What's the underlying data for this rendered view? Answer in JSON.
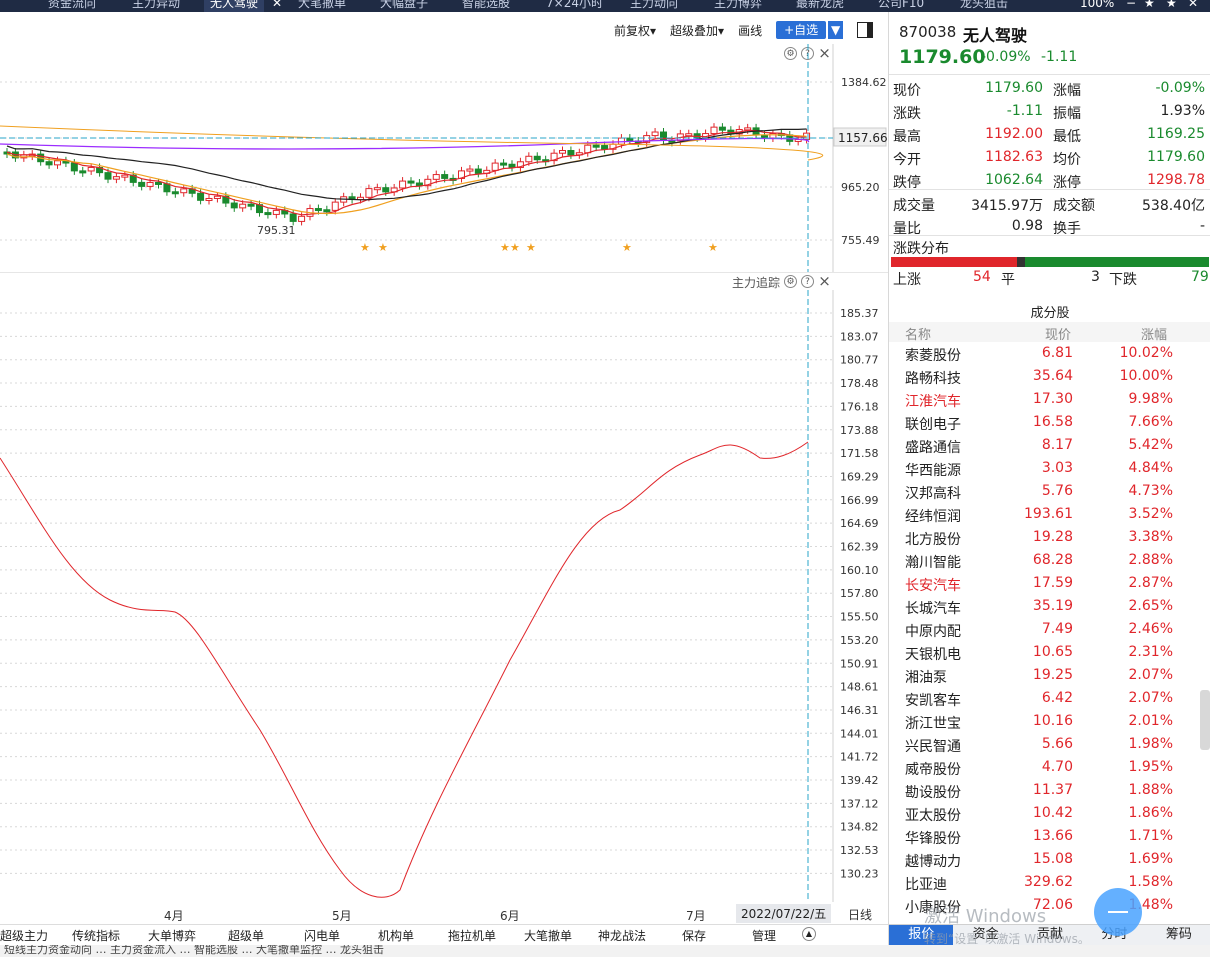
{
  "topbar": {
    "tabs": [
      "资金流向",
      "主力异动",
      "无人驾驶",
      "大笔撤单",
      "大幅盘子",
      "智能选股",
      "7×24小时",
      "主力动向",
      "主力博弈",
      "最新龙虎",
      "公司F10",
      "龙头狙击"
    ],
    "active_tab": 2,
    "zoom": "100%"
  },
  "chart_toolbar": {
    "adjust": "前复权▾",
    "overlay": "超级叠加▾",
    "draw": "画线",
    "add_watch": "+自选",
    "add_watch_arrow": "▼"
  },
  "kline": {
    "y_ticks": [
      "1384.62",
      "1157.66",
      "965.20",
      "755.49"
    ],
    "low_label": "795.31",
    "colors": {
      "up": "#e0262b",
      "down": "#1a8a2e",
      "ma5": "#9b2cff",
      "ma10": "#e0262b",
      "ma20": "#f0a020",
      "ma60": "#222222"
    }
  },
  "flow": {
    "title": "主力追踪",
    "y_ticks": [
      "185.37",
      "183.07",
      "180.77",
      "178.48",
      "176.18",
      "173.88",
      "171.58",
      "169.29",
      "166.99",
      "164.69",
      "162.39",
      "160.10",
      "157.80",
      "155.50",
      "153.20",
      "150.91",
      "148.61",
      "146.31",
      "144.01",
      "141.72",
      "139.42",
      "137.12",
      "134.82",
      "132.53",
      "130.23"
    ]
  },
  "xaxis": {
    "months": [
      "4月",
      "5月",
      "6月",
      "7月"
    ],
    "date": "2022/07/22/五",
    "period": "日线"
  },
  "indicator_tabs": [
    "超级主力",
    "传统指标",
    "大单博弈",
    "超级单",
    "闪电单",
    "机构单",
    "拖拉机单",
    "大笔撤单",
    "神龙战法",
    "保存",
    "管理"
  ],
  "quote": {
    "code": "870038",
    "name": "无人驾驶",
    "price": "1179.60",
    "pct": "-0.09%",
    "change": "-1.11",
    "stats": [
      {
        "k1": "现价",
        "v1": "1179.60",
        "c1": "green",
        "k2": "涨幅",
        "v2": "-0.09%",
        "c2": "green"
      },
      {
        "k1": "涨跌",
        "v1": "-1.11",
        "c1": "green",
        "k2": "振幅",
        "v2": "1.93%",
        "c2": "dark"
      },
      {
        "k1": "最高",
        "v1": "1192.00",
        "c1": "red",
        "k2": "最低",
        "v2": "1169.25",
        "c2": "green"
      },
      {
        "k1": "今开",
        "v1": "1182.63",
        "c1": "red",
        "k2": "均价",
        "v2": "1179.60",
        "c2": "green"
      },
      {
        "k1": "跌停",
        "v1": "1062.64",
        "c1": "green",
        "k2": "涨停",
        "v2": "1298.78",
        "c2": "red"
      },
      {
        "k1": "成交量",
        "v1": "3415.97万",
        "c1": "dark",
        "k2": "成交额",
        "v2": "538.40亿",
        "c2": "dark"
      },
      {
        "k1": "量比",
        "v1": "0.98",
        "c1": "dark",
        "k2": "换手",
        "v2": "-",
        "c2": "dark"
      }
    ]
  },
  "distribution": {
    "title": "涨跌分布",
    "up_label": "上涨",
    "up": 54,
    "flat_label": "平",
    "flat": 3,
    "down_label": "下跌",
    "down": 79
  },
  "components": {
    "title": "成分股",
    "headers": [
      "名称",
      "现价",
      "涨幅"
    ],
    "rows": [
      {
        "name": "索菱股份",
        "price": "6.81",
        "chg": "10.02%",
        "hl": false
      },
      {
        "name": "路畅科技",
        "price": "35.64",
        "chg": "10.00%",
        "hl": false
      },
      {
        "name": "江淮汽车",
        "price": "17.30",
        "chg": "9.98%",
        "hl": true
      },
      {
        "name": "联创电子",
        "price": "16.58",
        "chg": "7.66%",
        "hl": false
      },
      {
        "name": "盛路通信",
        "price": "8.17",
        "chg": "5.42%",
        "hl": false
      },
      {
        "name": "华西能源",
        "price": "3.03",
        "chg": "4.84%",
        "hl": false
      },
      {
        "name": "汉邦高科",
        "price": "5.76",
        "chg": "4.73%",
        "hl": false
      },
      {
        "name": "经纬恒润",
        "price": "193.61",
        "chg": "3.52%",
        "hl": false
      },
      {
        "name": "北方股份",
        "price": "19.28",
        "chg": "3.38%",
        "hl": false
      },
      {
        "name": "瀚川智能",
        "price": "68.28",
        "chg": "2.88%",
        "hl": false
      },
      {
        "name": "长安汽车",
        "price": "17.59",
        "chg": "2.87%",
        "hl": true
      },
      {
        "name": "长城汽车",
        "price": "35.19",
        "chg": "2.65%",
        "hl": false
      },
      {
        "name": "中原内配",
        "price": "7.49",
        "chg": "2.46%",
        "hl": false
      },
      {
        "name": "天银机电",
        "price": "10.65",
        "chg": "2.31%",
        "hl": false
      },
      {
        "name": "湘油泵",
        "price": "19.25",
        "chg": "2.07%",
        "hl": false
      },
      {
        "name": "安凯客车",
        "price": "6.42",
        "chg": "2.07%",
        "hl": false
      },
      {
        "name": "浙江世宝",
        "price": "10.16",
        "chg": "2.01%",
        "hl": false
      },
      {
        "name": "兴民智通",
        "price": "5.66",
        "chg": "1.98%",
        "hl": false
      },
      {
        "name": "威帝股份",
        "price": "4.70",
        "chg": "1.95%",
        "hl": false
      },
      {
        "name": "勘设股份",
        "price": "11.37",
        "chg": "1.88%",
        "hl": false
      },
      {
        "name": "亚太股份",
        "price": "10.42",
        "chg": "1.86%",
        "hl": false
      },
      {
        "name": "华锋股份",
        "price": "13.66",
        "chg": "1.71%",
        "hl": false
      },
      {
        "name": "越博动力",
        "price": "15.08",
        "chg": "1.69%",
        "hl": false
      },
      {
        "name": "比亚迪",
        "price": "329.62",
        "chg": "1.58%",
        "hl": false
      },
      {
        "name": "小康股份",
        "price": "72.06",
        "chg": "1.48%",
        "hl": false
      }
    ]
  },
  "bottom_tabs": [
    "报价",
    "资金",
    "贡献",
    "分时",
    "筹码"
  ],
  "watermark": {
    "line1": "激活 Windows",
    "line2": "转到“设置”以激活 Windows。"
  },
  "ticker": "短线主力资金动向 … 主力资金流入 … 智能选股 … 大笔撤单监控 … 龙头狙击"
}
